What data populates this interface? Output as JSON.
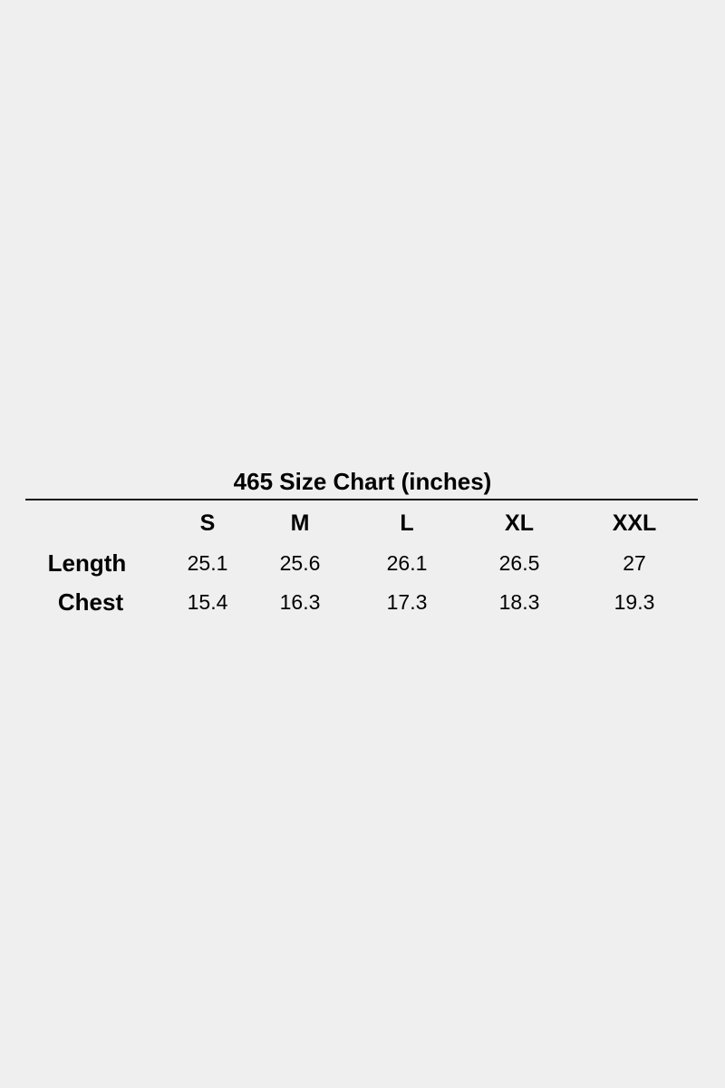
{
  "title": "465 Size Chart (inches)",
  "sizes": [
    "S",
    "M",
    "L",
    "XL",
    "XXL"
  ],
  "rows": [
    {
      "label": "Length",
      "values": [
        "25.1",
        "25.6",
        "26.1",
        "26.5",
        "27"
      ]
    },
    {
      "label": "Chest",
      "values": [
        "15.4",
        "16.3",
        "17.3",
        "18.3",
        "19.3"
      ]
    }
  ]
}
